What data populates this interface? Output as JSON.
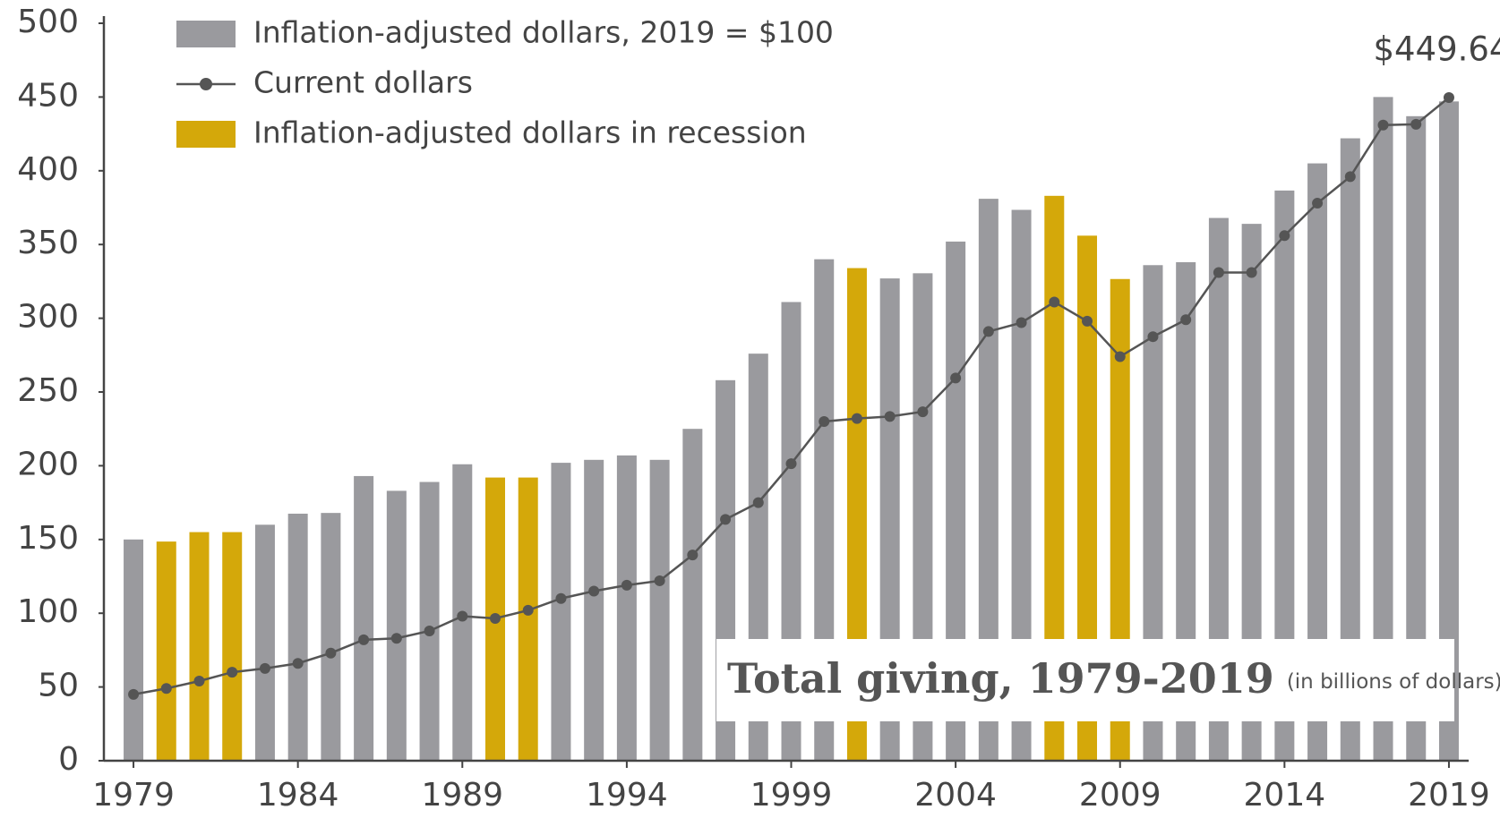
{
  "chart_data": {
    "type": "bar-line",
    "title": "Total giving, 1979-2019",
    "subtitle": "(in billions of dollars)",
    "x": [
      1979,
      1980,
      1981,
      1982,
      1983,
      1984,
      1985,
      1986,
      1987,
      1988,
      1989,
      1990,
      1991,
      1992,
      1993,
      1994,
      1995,
      1996,
      1997,
      1998,
      1999,
      2000,
      2001,
      2002,
      2003,
      2004,
      2005,
      2006,
      2007,
      2008,
      2009,
      2010,
      2011,
      2012,
      2013,
      2014,
      2015,
      2016,
      2017,
      2018,
      2019
    ],
    "series": [
      {
        "name": "Inflation-adjusted dollars, 2019 = $100",
        "type": "bar",
        "color": "#9a9a9e",
        "values": [
          150,
          null,
          null,
          null,
          160,
          167.5,
          168,
          193,
          183,
          189,
          201,
          null,
          null,
          202,
          204,
          207,
          204,
          225,
          258,
          276,
          311,
          340,
          null,
          327,
          330.5,
          352,
          381,
          373.5,
          null,
          null,
          null,
          336,
          338,
          368,
          364,
          386.6,
          405,
          422,
          450,
          437,
          447
        ]
      },
      {
        "name": "Current dollars",
        "type": "line",
        "color": "#555555",
        "values": [
          45,
          49,
          54,
          60,
          62.6,
          66,
          73,
          82,
          83,
          88,
          98,
          96.5,
          102,
          110,
          115,
          119,
          122,
          139.5,
          163.6,
          175,
          201.4,
          230,
          232,
          233.4,
          236.6,
          259.5,
          291,
          297,
          311,
          298,
          274,
          287.5,
          299,
          331,
          331,
          356,
          378,
          396,
          431,
          431.5,
          449.64
        ],
        "value_labels": [
          null,
          null,
          null,
          null,
          null,
          null,
          null,
          null,
          null,
          null,
          null,
          null,
          null,
          null,
          null,
          null,
          null,
          null,
          null,
          null,
          null,
          null,
          null,
          null,
          null,
          null,
          null,
          null,
          null,
          null,
          null,
          null,
          null,
          null,
          null,
          null,
          null,
          null,
          null,
          null,
          "$449.64"
        ]
      },
      {
        "name": "Inflation-adjusted dollars in recession",
        "type": "bar",
        "color": "#d4a80a",
        "values": [
          null,
          148.6,
          155,
          155,
          null,
          null,
          null,
          null,
          null,
          null,
          null,
          192,
          192,
          null,
          null,
          null,
          null,
          null,
          null,
          null,
          null,
          null,
          334,
          null,
          null,
          null,
          null,
          null,
          383,
          356,
          326.6,
          null,
          null,
          null,
          null,
          null,
          null,
          null,
          null,
          null,
          null
        ]
      }
    ],
    "xlim": [
      1978.1,
      2019.6
    ],
    "xticks": [
      1979,
      1984,
      1989,
      1994,
      1999,
      2004,
      2009,
      2014,
      2019
    ],
    "ylim": [
      0,
      500
    ],
    "yticks": [
      0,
      50,
      100,
      150,
      200,
      250,
      300,
      350,
      400,
      450,
      500
    ],
    "grid": false,
    "legend": "top-left"
  }
}
